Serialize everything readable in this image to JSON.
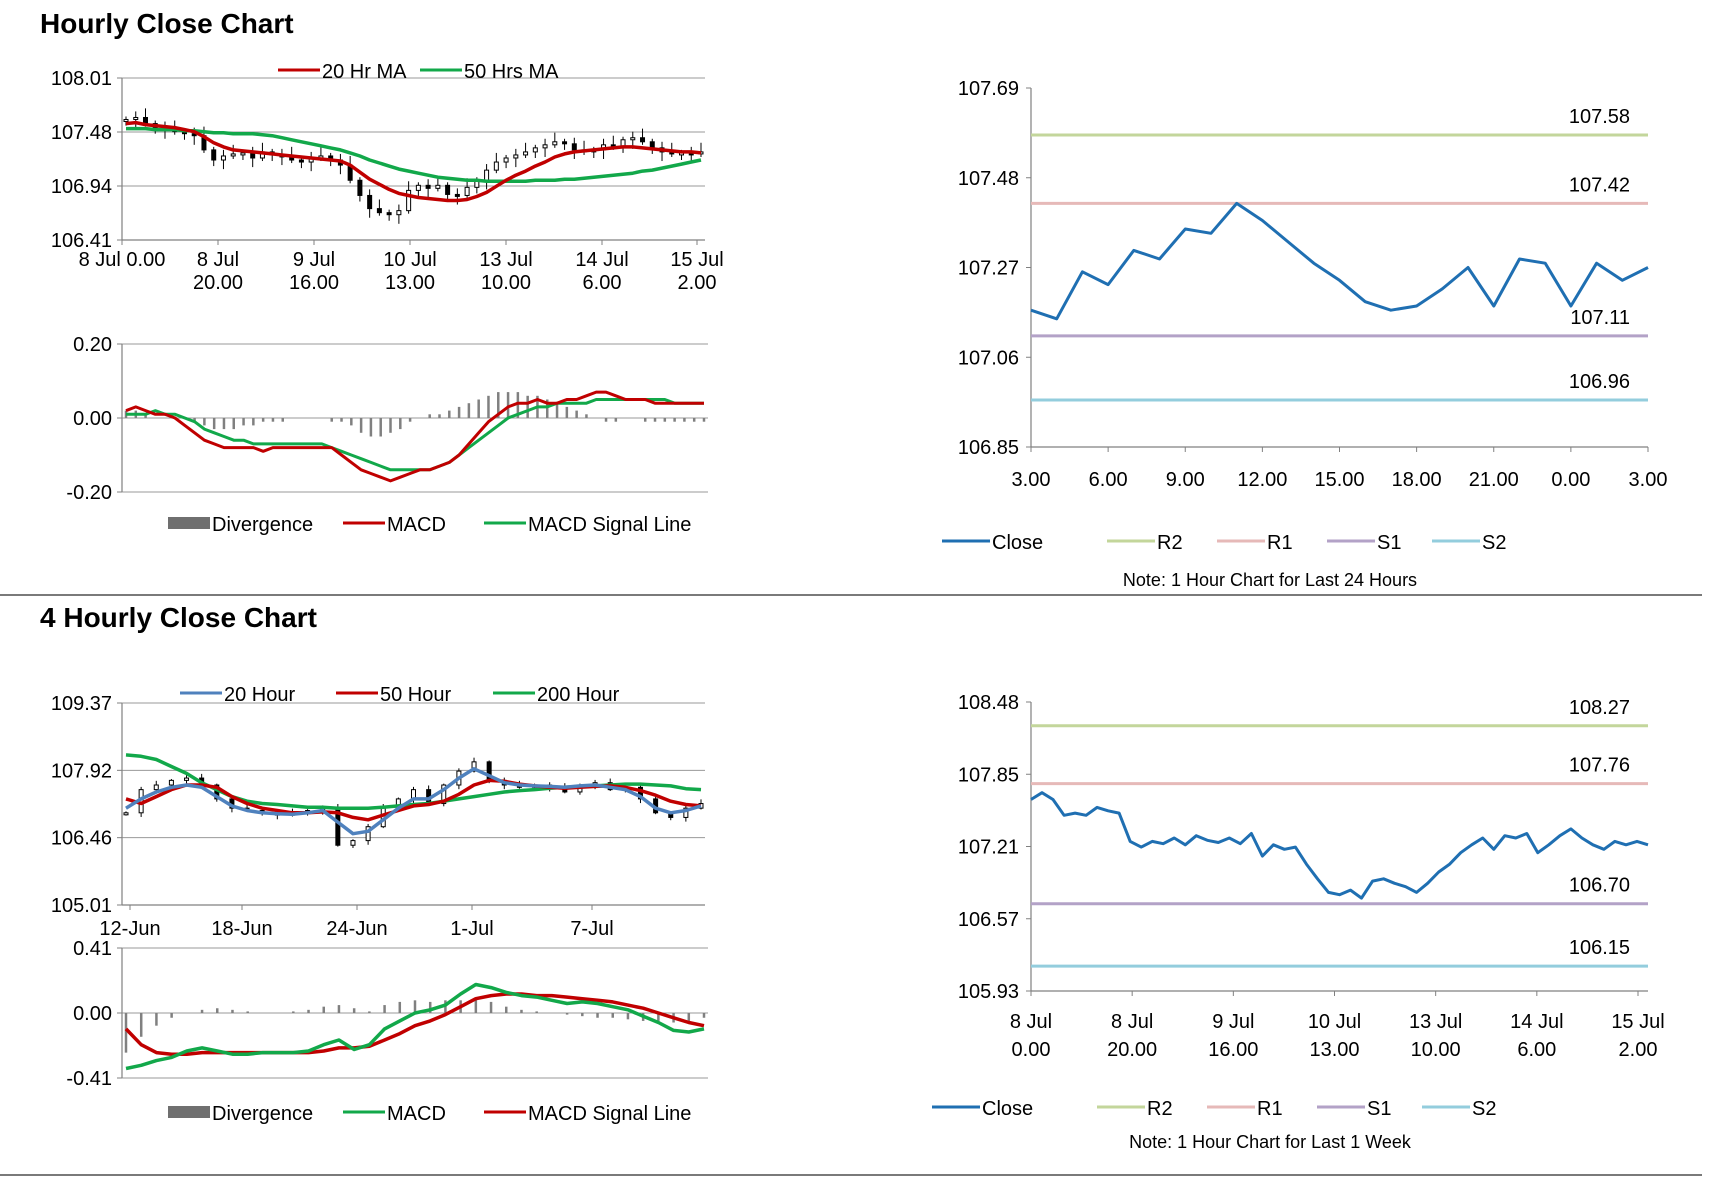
{
  "section1": {
    "title": "Hourly Close Chart",
    "note": "Note: 1 Hour Chart for Last 24 Hours"
  },
  "section2": {
    "title": "4 Hourly Close Chart",
    "note": "Note: 1 Hour Chart for Last 1 Week"
  },
  "colors": {
    "red": "#c00000",
    "green": "#12a84a",
    "blue": "#4f81bd",
    "close": "#1f6fb2",
    "r2": "#c3d69b",
    "r1": "#e6b9b8",
    "s1": "#b3a2c7",
    "s2": "#93cddd",
    "grey": "#808080"
  },
  "chart_data": [
    {
      "id": "hourly_price",
      "type": "line",
      "title": "",
      "ylim": [
        106.41,
        108.01
      ],
      "yticks": [
        "108.01",
        "107.48",
        "106.94",
        "106.41"
      ],
      "xticks": [
        [
          "8 Jul 0.00",
          ""
        ],
        [
          "8 Jul",
          "20.00"
        ],
        [
          "9 Jul",
          "16.00"
        ],
        [
          "10 Jul",
          "13.00"
        ],
        [
          "13 Jul",
          "10.00"
        ],
        [
          "14 Jul",
          "6.00"
        ],
        [
          "15 Jul",
          "2.00"
        ]
      ],
      "legend": [
        "20 Hr MA",
        "50 Hrs MA"
      ],
      "series": [
        {
          "name": "Price",
          "values": [
            107.6,
            107.62,
            107.56,
            107.52,
            107.5,
            107.48,
            107.46,
            107.44,
            107.3,
            107.2,
            107.24,
            107.26,
            107.27,
            107.22,
            107.28,
            107.25,
            107.24,
            107.2,
            107.18,
            107.22,
            107.24,
            107.2,
            107.15,
            107.0,
            106.85,
            106.72,
            106.68,
            106.66,
            106.7,
            106.9,
            106.95,
            106.92,
            106.95,
            106.86,
            106.85,
            106.93,
            107.0,
            107.1,
            107.18,
            107.22,
            107.25,
            107.28,
            107.32,
            107.35,
            107.38,
            107.36,
            107.3,
            107.28,
            107.3,
            107.35,
            107.33,
            107.4,
            107.42,
            107.38,
            107.32,
            107.28,
            107.26,
            107.27,
            107.26,
            107.28
          ]
        },
        {
          "name": "20 Hr MA",
          "values": [
            107.56,
            107.57,
            107.55,
            107.54,
            107.53,
            107.52,
            107.5,
            107.48,
            107.43,
            107.37,
            107.33,
            107.3,
            107.29,
            107.28,
            107.27,
            107.26,
            107.25,
            107.24,
            107.23,
            107.22,
            107.21,
            107.2,
            107.19,
            107.15,
            107.08,
            107.01,
            106.96,
            106.91,
            106.87,
            106.85,
            106.83,
            106.82,
            106.81,
            106.8,
            106.8,
            106.81,
            106.84,
            106.88,
            106.94,
            107.0,
            107.05,
            107.09,
            107.14,
            107.18,
            107.23,
            107.26,
            107.28,
            107.29,
            107.3,
            107.31,
            107.32,
            107.33,
            107.33,
            107.32,
            107.31,
            107.3,
            107.29,
            107.28,
            107.28,
            107.27
          ]
        },
        {
          "name": "50 Hrs MA",
          "values": [
            107.51,
            107.51,
            107.51,
            107.5,
            107.5,
            107.5,
            107.49,
            107.49,
            107.48,
            107.47,
            107.47,
            107.46,
            107.46,
            107.46,
            107.45,
            107.44,
            107.42,
            107.4,
            107.38,
            107.36,
            107.34,
            107.32,
            107.3,
            107.27,
            107.24,
            107.2,
            107.17,
            107.14,
            107.11,
            107.09,
            107.07,
            107.05,
            107.03,
            107.02,
            107.01,
            107.0,
            107.0,
            106.99,
            106.99,
            106.99,
            106.99,
            106.99,
            107.0,
            107.0,
            107.0,
            107.01,
            107.01,
            107.02,
            107.03,
            107.04,
            107.05,
            107.06,
            107.07,
            107.09,
            107.1,
            107.12,
            107.14,
            107.16,
            107.18,
            107.2
          ]
        }
      ]
    },
    {
      "id": "hourly_macd",
      "type": "line",
      "ylim": [
        -0.2,
        0.2
      ],
      "yticks": [
        "0.20",
        "0.00",
        "-0.20"
      ],
      "legend": [
        "Divergence",
        "MACD",
        "MACD Signal Line"
      ],
      "series": [
        {
          "name": "Divergence",
          "values": [
            0.02,
            0.02,
            0.01,
            0.0,
            0.0,
            0.0,
            0.0,
            -0.01,
            -0.02,
            -0.03,
            -0.03,
            -0.03,
            -0.02,
            -0.02,
            -0.01,
            -0.01,
            -0.01,
            0.0,
            0.0,
            0.0,
            0.0,
            -0.01,
            -0.01,
            -0.02,
            -0.04,
            -0.05,
            -0.05,
            -0.04,
            -0.03,
            -0.01,
            0.0,
            0.01,
            0.01,
            0.02,
            0.03,
            0.04,
            0.05,
            0.06,
            0.07,
            0.07,
            0.07,
            0.06,
            0.06,
            0.05,
            0.04,
            0.03,
            0.02,
            0.01,
            0.0,
            -0.01,
            -0.01,
            0.0,
            0.0,
            -0.01,
            -0.01,
            -0.01,
            -0.01,
            -0.01,
            -0.01,
            -0.01
          ]
        },
        {
          "name": "MACD",
          "values": [
            0.02,
            0.03,
            0.02,
            0.01,
            0.01,
            0.0,
            -0.02,
            -0.04,
            -0.06,
            -0.07,
            -0.08,
            -0.08,
            -0.08,
            -0.08,
            -0.09,
            -0.08,
            -0.08,
            -0.08,
            -0.08,
            -0.08,
            -0.08,
            -0.08,
            -0.1,
            -0.12,
            -0.14,
            -0.15,
            -0.16,
            -0.17,
            -0.16,
            -0.15,
            -0.14,
            -0.14,
            -0.13,
            -0.12,
            -0.1,
            -0.07,
            -0.04,
            -0.01,
            0.01,
            0.03,
            0.04,
            0.04,
            0.05,
            0.04,
            0.04,
            0.05,
            0.05,
            0.06,
            0.07,
            0.07,
            0.06,
            0.05,
            0.05,
            0.05,
            0.04,
            0.04,
            0.04,
            0.04,
            0.04,
            0.04
          ]
        },
        {
          "name": "MACD Signal Line",
          "values": [
            0.01,
            0.01,
            0.01,
            0.02,
            0.01,
            0.01,
            0.0,
            -0.01,
            -0.03,
            -0.04,
            -0.05,
            -0.06,
            -0.06,
            -0.07,
            -0.07,
            -0.07,
            -0.07,
            -0.07,
            -0.07,
            -0.07,
            -0.07,
            -0.08,
            -0.09,
            -0.1,
            -0.11,
            -0.12,
            -0.13,
            -0.14,
            -0.14,
            -0.14,
            -0.14,
            -0.14,
            -0.13,
            -0.12,
            -0.1,
            -0.08,
            -0.06,
            -0.04,
            -0.02,
            0.0,
            0.01,
            0.02,
            0.03,
            0.03,
            0.04,
            0.04,
            0.04,
            0.04,
            0.05,
            0.05,
            0.05,
            0.05,
            0.05,
            0.05,
            0.05,
            0.05,
            0.04,
            0.04,
            0.04,
            0.04
          ]
        }
      ]
    },
    {
      "id": "hourly_close_24h",
      "type": "line",
      "ylim": [
        106.85,
        107.69
      ],
      "yticks": [
        "107.69",
        "107.48",
        "107.27",
        "107.06",
        "106.85"
      ],
      "xticks": [
        "3.00",
        "6.00",
        "9.00",
        "12.00",
        "15.00",
        "18.00",
        "21.00",
        "0.00",
        "3.00"
      ],
      "legend": [
        "Close",
        "R2",
        "R1",
        "S1",
        "S2"
      ],
      "levels": [
        {
          "name": "R2",
          "value": 107.58,
          "label": "107.58"
        },
        {
          "name": "R1",
          "value": 107.42,
          "label": "107.42"
        },
        {
          "name": "S1",
          "value": 107.11,
          "label": "107.11"
        },
        {
          "name": "S2",
          "value": 106.96,
          "label": "106.96"
        }
      ],
      "series": [
        {
          "name": "Close",
          "values": [
            107.17,
            107.15,
            107.26,
            107.23,
            107.31,
            107.29,
            107.36,
            107.35,
            107.42,
            107.38,
            107.33,
            107.28,
            107.24,
            107.19,
            107.17,
            107.18,
            107.22,
            107.27,
            107.18,
            107.29,
            107.28,
            107.18,
            107.28,
            107.24,
            107.27
          ]
        }
      ]
    },
    {
      "id": "four_hourly_price",
      "type": "line",
      "ylim": [
        105.01,
        109.37
      ],
      "yticks": [
        "109.37",
        "107.92",
        "106.46",
        "105.01"
      ],
      "xticks": [
        "12-Jun",
        "18-Jun",
        "24-Jun",
        "1-Jul",
        "7-Jul"
      ],
      "legend": [
        "20 Hour",
        "50 Hour",
        "200 Hour"
      ],
      "series": [
        {
          "name": "Price",
          "values": [
            107.0,
            107.5,
            107.6,
            107.7,
            107.75,
            107.6,
            107.3,
            107.1,
            107.05,
            107.0,
            106.95,
            107.0,
            107.05,
            107.1,
            106.3,
            106.4,
            106.7,
            107.1,
            107.3,
            107.5,
            107.2,
            107.6,
            107.9,
            108.1,
            107.7,
            107.6,
            107.55,
            107.6,
            107.55,
            107.45,
            107.6,
            107.65,
            107.5,
            107.55,
            107.3,
            107.0,
            106.9,
            107.1,
            107.2
          ]
        },
        {
          "name": "20 Hour",
          "values": [
            107.1,
            107.3,
            107.45,
            107.55,
            107.6,
            107.55,
            107.35,
            107.15,
            107.05,
            107.0,
            106.98,
            106.97,
            107.0,
            107.05,
            106.8,
            106.55,
            106.6,
            106.85,
            107.1,
            107.3,
            107.3,
            107.5,
            107.75,
            107.95,
            107.8,
            107.65,
            107.6,
            107.58,
            107.57,
            107.55,
            107.58,
            107.6,
            107.55,
            107.5,
            107.35,
            107.1,
            107.0,
            107.05,
            107.15
          ]
        },
        {
          "name": "50 Hour",
          "values": [
            107.3,
            107.2,
            107.35,
            107.5,
            107.6,
            107.6,
            107.55,
            107.35,
            107.2,
            107.1,
            107.05,
            107.0,
            107.0,
            107.02,
            107.0,
            106.9,
            106.85,
            106.95,
            107.05,
            107.15,
            107.18,
            107.25,
            107.4,
            107.6,
            107.7,
            107.68,
            107.62,
            107.58,
            107.55,
            107.53,
            107.55,
            107.57,
            107.58,
            107.55,
            107.48,
            107.38,
            107.25,
            107.18,
            107.15
          ]
        },
        {
          "name": "200 Hour",
          "values": [
            108.25,
            108.22,
            108.15,
            108.0,
            107.85,
            107.65,
            107.5,
            107.35,
            107.25,
            107.2,
            107.18,
            107.15,
            107.12,
            107.12,
            107.1,
            107.1,
            107.1,
            107.12,
            107.15,
            107.18,
            107.2,
            107.25,
            107.3,
            107.35,
            107.4,
            107.45,
            107.48,
            107.5,
            107.53,
            107.55,
            107.57,
            107.58,
            107.6,
            107.62,
            107.62,
            107.6,
            107.58,
            107.52,
            107.5
          ]
        }
      ]
    },
    {
      "id": "four_hourly_macd",
      "type": "line",
      "ylim": [
        -0.41,
        0.41
      ],
      "yticks": [
        "0.41",
        "0.00",
        "-0.41"
      ],
      "legend": [
        "Divergence",
        "MACD",
        "MACD Signal Line"
      ],
      "series": [
        {
          "name": "Divergence",
          "values": [
            -0.25,
            -0.15,
            -0.08,
            -0.03,
            0.0,
            0.02,
            0.03,
            0.02,
            0.01,
            0.0,
            0.0,
            0.01,
            0.02,
            0.04,
            0.05,
            0.03,
            0.01,
            0.05,
            0.07,
            0.08,
            0.07,
            0.08,
            0.08,
            0.09,
            0.07,
            0.04,
            0.02,
            0.01,
            0.0,
            -0.01,
            -0.02,
            -0.03,
            -0.03,
            -0.04,
            -0.05,
            -0.05,
            -0.06,
            -0.05,
            -0.03
          ]
        },
        {
          "name": "MACD",
          "values": [
            -0.35,
            -0.33,
            -0.3,
            -0.28,
            -0.24,
            -0.22,
            -0.24,
            -0.26,
            -0.26,
            -0.25,
            -0.25,
            -0.25,
            -0.24,
            -0.2,
            -0.17,
            -0.23,
            -0.2,
            -0.1,
            -0.05,
            0.0,
            0.02,
            0.05,
            0.12,
            0.18,
            0.16,
            0.13,
            0.11,
            0.1,
            0.08,
            0.06,
            0.07,
            0.06,
            0.04,
            0.02,
            -0.02,
            -0.06,
            -0.11,
            -0.12,
            -0.1
          ]
        },
        {
          "name": "MACD Signal Line",
          "values": [
            -0.1,
            -0.2,
            -0.25,
            -0.26,
            -0.26,
            -0.25,
            -0.25,
            -0.25,
            -0.25,
            -0.25,
            -0.25,
            -0.25,
            -0.25,
            -0.24,
            -0.22,
            -0.22,
            -0.21,
            -0.17,
            -0.13,
            -0.08,
            -0.05,
            -0.01,
            0.04,
            0.09,
            0.11,
            0.12,
            0.12,
            0.11,
            0.11,
            0.1,
            0.09,
            0.08,
            0.07,
            0.05,
            0.03,
            0.0,
            -0.03,
            -0.06,
            -0.08
          ]
        }
      ]
    },
    {
      "id": "hourly_close_1w",
      "type": "line",
      "ylim": [
        105.93,
        108.48
      ],
      "yticks": [
        "108.48",
        "107.85",
        "107.21",
        "106.57",
        "105.93"
      ],
      "xticks": [
        [
          "8 Jul",
          "0.00"
        ],
        [
          "8 Jul",
          "20.00"
        ],
        [
          "9 Jul",
          "16.00"
        ],
        [
          "10 Jul",
          "13.00"
        ],
        [
          "13 Jul",
          "10.00"
        ],
        [
          "14 Jul",
          "6.00"
        ],
        [
          "15 Jul",
          "2.00"
        ]
      ],
      "legend": [
        "Close",
        "R2",
        "R1",
        "S1",
        "S2"
      ],
      "levels": [
        {
          "name": "R2",
          "value": 108.27,
          "label": "108.27"
        },
        {
          "name": "R1",
          "value": 107.76,
          "label": "107.76"
        },
        {
          "name": "S1",
          "value": 106.7,
          "label": "106.70"
        },
        {
          "name": "S2",
          "value": 106.15,
          "label": "106.15"
        }
      ],
      "series": [
        {
          "name": "Close",
          "values": [
            107.62,
            107.68,
            107.62,
            107.48,
            107.5,
            107.48,
            107.55,
            107.52,
            107.5,
            107.25,
            107.2,
            107.25,
            107.23,
            107.28,
            107.22,
            107.3,
            107.26,
            107.24,
            107.28,
            107.23,
            107.32,
            107.12,
            107.22,
            107.18,
            107.2,
            107.05,
            106.92,
            106.8,
            106.78,
            106.82,
            106.75,
            106.9,
            106.92,
            106.88,
            106.85,
            106.8,
            106.88,
            106.98,
            107.05,
            107.15,
            107.22,
            107.28,
            107.18,
            107.3,
            107.28,
            107.32,
            107.15,
            107.22,
            107.3,
            107.36,
            107.28,
            107.22,
            107.18,
            107.25,
            107.22,
            107.25,
            107.22
          ]
        }
      ]
    }
  ]
}
